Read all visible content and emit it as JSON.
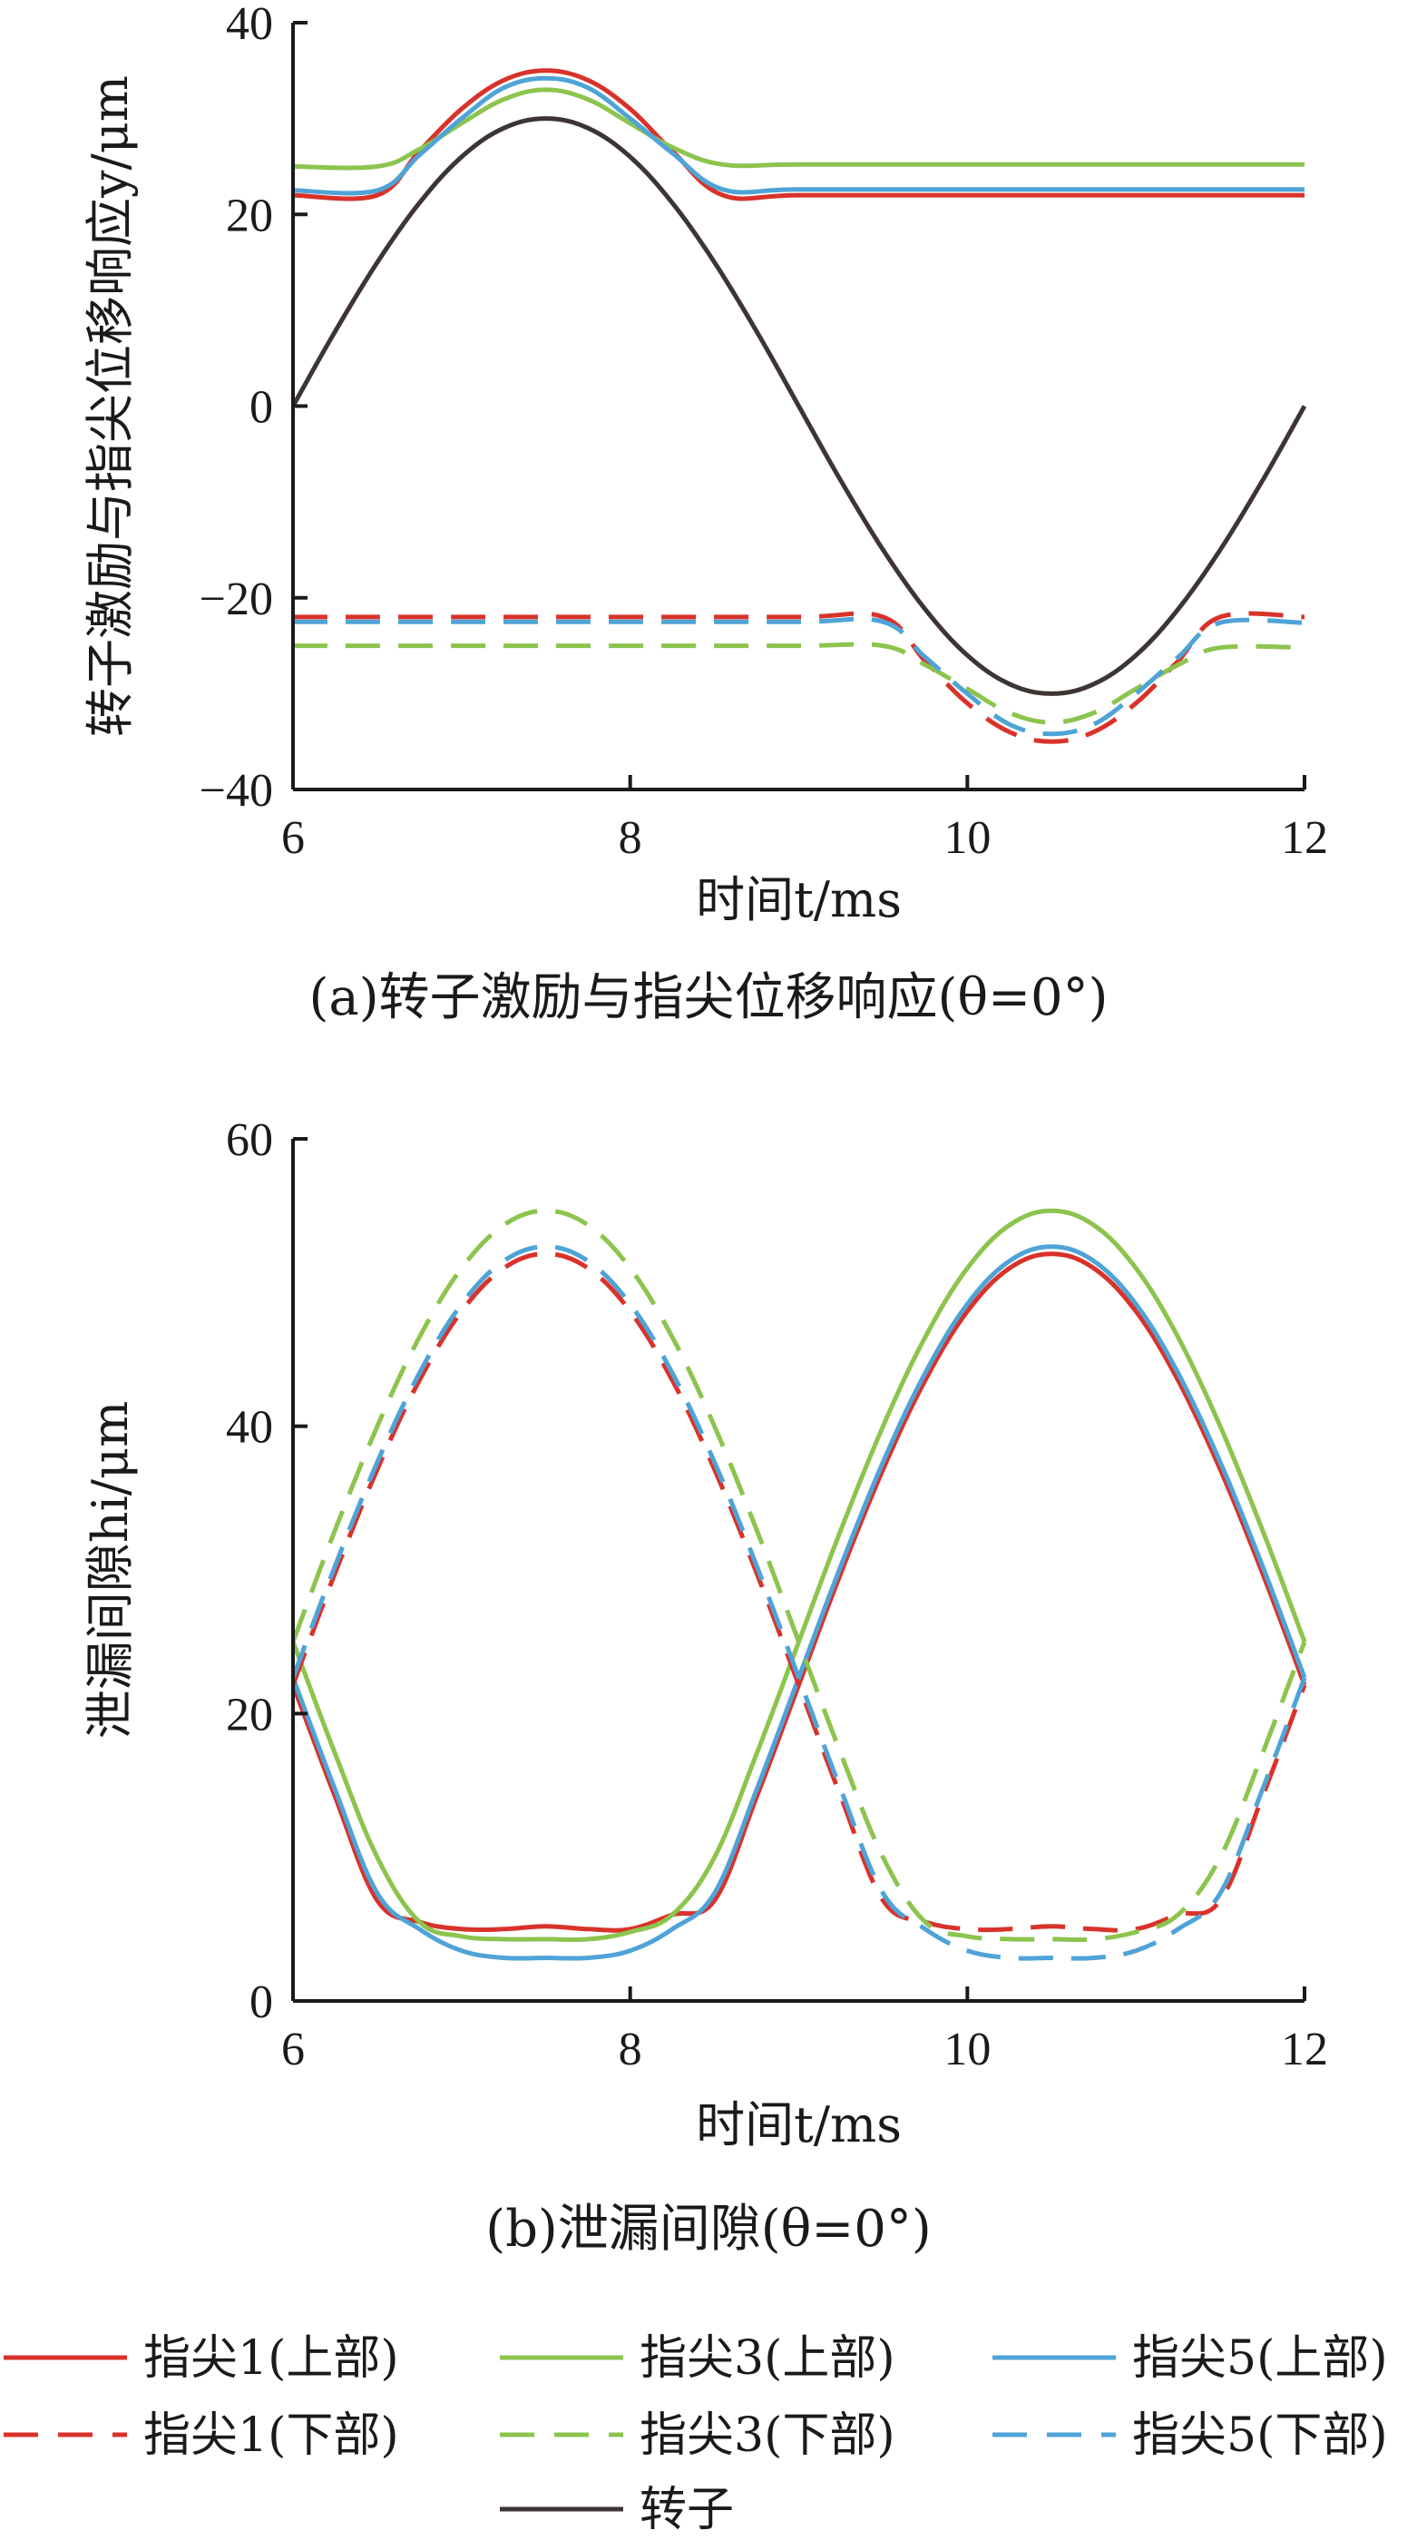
{
  "colors": {
    "red": "#d9322a",
    "green": "#8cc44e",
    "blue": "#4fa3d6",
    "rotor": "#3d3533",
    "axis": "#1a1a1a"
  },
  "legend": [
    {
      "name": "指尖1(上部)",
      "color": "red",
      "dash": false
    },
    {
      "name": "指尖3(上部)",
      "color": "green",
      "dash": false
    },
    {
      "name": "指尖5(上部)",
      "color": "blue",
      "dash": false
    },
    {
      "name": "指尖1(下部)",
      "color": "red",
      "dash": true
    },
    {
      "name": "指尖3(下部)",
      "color": "green",
      "dash": true
    },
    {
      "name": "指尖5(下部)",
      "color": "blue",
      "dash": true
    },
    {
      "name": "转子",
      "color": "rotor",
      "dash": false
    }
  ],
  "chart_data": [
    {
      "type": "line",
      "caption": "(a)转子激励与指尖位移响应(θ=0°)",
      "xlabel": "时间t/ms",
      "ylabel": "转子激励与指尖位移响应y/μm",
      "xlim": [
        6,
        12
      ],
      "ylim": [
        -40,
        40
      ],
      "xticks": [
        6,
        8,
        10,
        12
      ],
      "yticks": [
        -40,
        -20,
        0,
        20,
        40
      ],
      "xtick_labels": [
        "6",
        "8",
        "10",
        "12"
      ],
      "ytick_labels": [
        "−40",
        "−20",
        "0",
        "20",
        "40"
      ],
      "series": [
        {
          "name": "指尖1(上部)",
          "color": "red",
          "dash": false,
          "x": [
            6,
            6.5,
            6.75,
            7,
            7.25,
            7.5,
            7.75,
            8,
            8.25,
            8.55,
            9,
            10,
            11,
            12
          ],
          "y": [
            22,
            22,
            26.6,
            31.0,
            34.0,
            35.0,
            34.0,
            31.0,
            26.6,
            22,
            22,
            22,
            22,
            22
          ]
        },
        {
          "name": "指尖3(上部)",
          "color": "green",
          "dash": false,
          "x": [
            6,
            6.5,
            6.75,
            7,
            7.25,
            7.5,
            7.75,
            8,
            8.25,
            8.55,
            9,
            10,
            11,
            12
          ],
          "y": [
            25,
            25,
            26.8,
            29.5,
            32.0,
            33.0,
            32.0,
            29.5,
            27.0,
            25.2,
            25.2,
            25.2,
            25.2,
            25.2
          ]
        },
        {
          "name": "指尖5(上部)",
          "color": "blue",
          "dash": false,
          "x": [
            6,
            6.5,
            6.75,
            7,
            7.25,
            7.5,
            7.75,
            8,
            8.25,
            8.55,
            9,
            10,
            11,
            12
          ],
          "y": [
            22.5,
            22.5,
            26.2,
            30.0,
            33.2,
            34.2,
            33.2,
            30.0,
            26.4,
            22.6,
            22.6,
            22.6,
            22.6,
            22.6
          ]
        },
        {
          "name": "指尖1(下部)",
          "color": "red",
          "dash": true,
          "x": [
            6,
            7,
            8,
            9,
            9.5,
            9.75,
            10,
            10.25,
            10.5,
            10.75,
            11,
            11.25,
            11.5,
            12
          ],
          "y": [
            -22,
            -22,
            -22,
            -22,
            -22,
            -26.6,
            -31.0,
            -34.0,
            -35.0,
            -34.0,
            -31.0,
            -26.6,
            -22,
            -22
          ]
        },
        {
          "name": "指尖3(下部)",
          "color": "green",
          "dash": true,
          "x": [
            6,
            7,
            8,
            9,
            9.5,
            9.75,
            10,
            10.25,
            10.5,
            10.75,
            11,
            11.25,
            11.5,
            12
          ],
          "y": [
            -25,
            -25,
            -25,
            -25,
            -25,
            -27.0,
            -29.5,
            -32.0,
            -33.0,
            -32.0,
            -29.5,
            -27.0,
            -25.2,
            -25.2
          ]
        },
        {
          "name": "指尖5(下部)",
          "color": "blue",
          "dash": true,
          "x": [
            6,
            7,
            8,
            9,
            9.5,
            9.75,
            10,
            10.25,
            10.5,
            10.75,
            11,
            11.25,
            11.5,
            12
          ],
          "y": [
            -22.5,
            -22.5,
            -22.5,
            -22.5,
            -22.5,
            -26.2,
            -30.0,
            -33.2,
            -34.2,
            -33.2,
            -30.0,
            -26.2,
            -22.6,
            -22.6
          ]
        },
        {
          "name": "转子",
          "color": "rotor",
          "dash": false,
          "x": [
            6,
            6.25,
            6.5,
            6.75,
            7,
            7.25,
            7.5,
            7.75,
            8,
            8.25,
            8.5,
            8.75,
            9,
            9.25,
            9.5,
            9.75,
            10,
            10.25,
            10.5,
            10.75,
            11,
            11.25,
            11.5,
            11.75,
            12
          ],
          "y": [
            0,
            7.8,
            15.0,
            21.2,
            26.0,
            29.0,
            30.0,
            29.0,
            26.0,
            21.2,
            15.0,
            7.8,
            0,
            -7.8,
            -15.0,
            -21.2,
            -26.0,
            -29.0,
            -30.0,
            -29.0,
            -26.0,
            -21.2,
            -15.0,
            -7.8,
            0
          ]
        }
      ]
    },
    {
      "type": "line",
      "caption": "(b)泄漏间隙(θ=0°)",
      "xlabel": "时间t/ms",
      "ylabel": "泄漏间隙hi/μm",
      "xlim": [
        6,
        12
      ],
      "ylim": [
        0,
        60
      ],
      "xticks": [
        6,
        8,
        10,
        12
      ],
      "yticks": [
        0,
        20,
        40,
        60
      ],
      "xtick_labels": [
        "6",
        "8",
        "10",
        "12"
      ],
      "ytick_labels": [
        "0",
        "20",
        "40",
        "60"
      ],
      "series": [
        {
          "name": "指尖1(上部)",
          "color": "red",
          "dash": false,
          "x": [
            6,
            6.25,
            6.5,
            6.75,
            7,
            7.25,
            7.5,
            7.75,
            8,
            8.25,
            8.5,
            8.75,
            9,
            9.25,
            9.5,
            9.75,
            10,
            10.25,
            10.5,
            10.75,
            11,
            11.25,
            11.5,
            11.75,
            12
          ],
          "y": [
            22,
            14.2,
            7.0,
            5.5,
            5.0,
            5.0,
            5.2,
            5.0,
            5.0,
            6.0,
            7.0,
            14.2,
            22,
            29.8,
            37.0,
            43.2,
            48.0,
            51.0,
            52.0,
            51.0,
            48.0,
            43.2,
            37.0,
            29.8,
            22
          ]
        },
        {
          "name": "指尖3(上部)",
          "color": "green",
          "dash": false,
          "x": [
            6,
            6.25,
            6.5,
            6.75,
            7,
            7.25,
            7.5,
            7.75,
            8,
            8.25,
            8.5,
            8.75,
            9,
            9.25,
            9.5,
            9.75,
            10,
            10.25,
            10.5,
            10.75,
            11,
            11.25,
            11.5,
            11.75,
            12
          ],
          "y": [
            25,
            17.2,
            10.0,
            5.5,
            4.5,
            4.3,
            4.3,
            4.3,
            4.8,
            6.0,
            10.0,
            17.2,
            25,
            32.8,
            40.0,
            46.2,
            51.0,
            54.0,
            55.0,
            54.0,
            51.0,
            46.2,
            40.0,
            32.8,
            25
          ]
        },
        {
          "name": "指尖5(上部)",
          "color": "blue",
          "dash": false,
          "x": [
            6,
            6.25,
            6.5,
            6.75,
            7,
            7.25,
            7.5,
            7.75,
            8,
            8.25,
            8.5,
            8.75,
            9,
            9.25,
            9.5,
            9.75,
            10,
            10.25,
            10.5,
            10.75,
            11,
            11.25,
            11.5,
            11.75,
            12
          ],
          "y": [
            22.5,
            14.7,
            7.5,
            5.0,
            3.5,
            3.0,
            3.0,
            3.0,
            3.5,
            5.0,
            7.5,
            14.7,
            22.5,
            30.3,
            37.5,
            43.7,
            48.5,
            51.5,
            52.5,
            51.5,
            48.5,
            43.7,
            37.5,
            30.3,
            22.5
          ]
        },
        {
          "name": "指尖1(下部)",
          "color": "red",
          "dash": true,
          "x": [
            6,
            6.25,
            6.5,
            6.75,
            7,
            7.25,
            7.5,
            7.75,
            8,
            8.25,
            8.5,
            8.75,
            9,
            9.25,
            9.5,
            9.75,
            10,
            10.25,
            10.5,
            10.75,
            11,
            11.25,
            11.5,
            11.75,
            12
          ],
          "y": [
            22,
            29.8,
            37.0,
            43.2,
            48.0,
            51.0,
            52.0,
            51.0,
            48.0,
            43.2,
            37.0,
            29.8,
            22,
            14.2,
            7.0,
            5.5,
            5.0,
            5.0,
            5.2,
            5.0,
            5.0,
            6.0,
            7.0,
            14.2,
            22
          ]
        },
        {
          "name": "指尖3(下部)",
          "color": "green",
          "dash": true,
          "x": [
            6,
            6.25,
            6.5,
            6.75,
            7,
            7.25,
            7.5,
            7.75,
            8,
            8.25,
            8.5,
            8.75,
            9,
            9.25,
            9.5,
            9.75,
            10,
            10.25,
            10.5,
            10.75,
            11,
            11.25,
            11.5,
            11.75,
            12
          ],
          "y": [
            25,
            32.8,
            40.0,
            46.2,
            51.0,
            54.0,
            55.0,
            54.0,
            51.0,
            46.2,
            40.0,
            32.8,
            25,
            17.2,
            10.0,
            5.5,
            4.5,
            4.3,
            4.3,
            4.3,
            4.8,
            6.0,
            10.0,
            17.2,
            25
          ]
        },
        {
          "name": "指尖5(下部)",
          "color": "blue",
          "dash": true,
          "x": [
            6,
            6.25,
            6.5,
            6.75,
            7,
            7.25,
            7.5,
            7.75,
            8,
            8.25,
            8.5,
            8.75,
            9,
            9.25,
            9.5,
            9.75,
            10,
            10.25,
            10.5,
            10.75,
            11,
            11.25,
            11.5,
            11.75,
            12
          ],
          "y": [
            22.5,
            30.3,
            37.5,
            43.7,
            48.5,
            51.5,
            52.5,
            51.5,
            48.5,
            43.7,
            37.5,
            30.3,
            22.5,
            14.7,
            7.5,
            5.0,
            3.5,
            3.0,
            3.0,
            3.0,
            3.5,
            5.0,
            7.5,
            14.7,
            22.5
          ]
        }
      ]
    }
  ]
}
